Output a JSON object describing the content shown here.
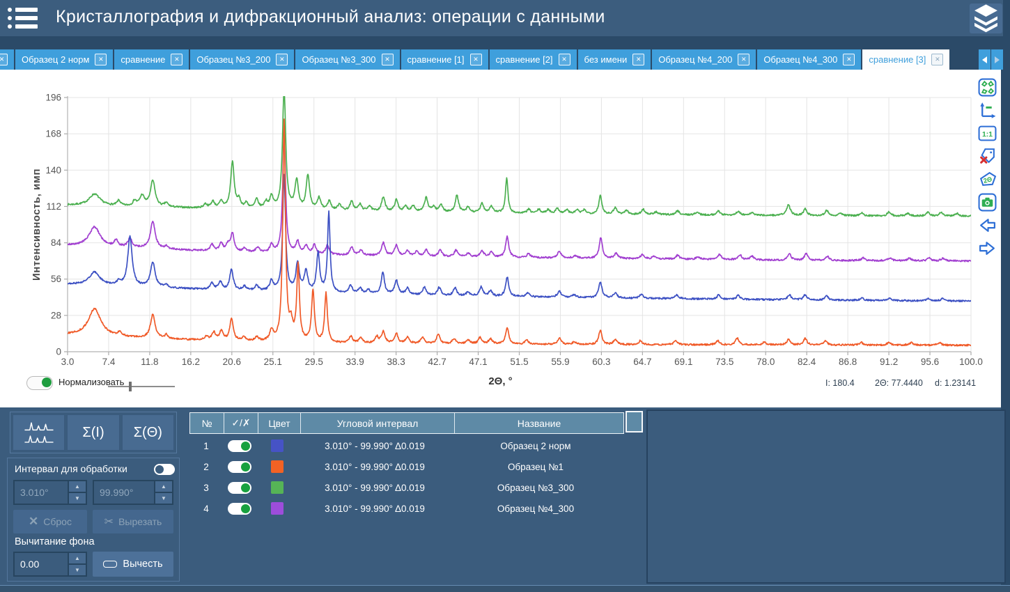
{
  "header": {
    "title": "Кристаллография и дифракционный анализ: операции с данными"
  },
  "tabs": {
    "items": [
      {
        "label": "",
        "clipped": true,
        "active": false
      },
      {
        "label": "Образец 2 норм",
        "active": false
      },
      {
        "label": "сравнение",
        "active": false
      },
      {
        "label": "Образец №3_200",
        "active": false
      },
      {
        "label": "Образец №3_300",
        "active": false
      },
      {
        "label": "сравнение [1]",
        "active": false
      },
      {
        "label": "сравнение [2]",
        "active": false
      },
      {
        "label": "без имени",
        "active": false
      },
      {
        "label": "Образец №4_200",
        "active": false
      },
      {
        "label": "Образец №4_300",
        "active": false
      },
      {
        "label": "сравнение [3]",
        "active": true
      }
    ],
    "close_glyph": "✕"
  },
  "toolbar": {
    "icons": [
      "labels-grid",
      "axes-autoscale",
      "one-to-one",
      "delete-labels",
      "two-theta-labels",
      "camera",
      "undo-arrow",
      "redo-arrow"
    ]
  },
  "chart": {
    "normalize_label": "Нормализовать",
    "status": {
      "intensity": "I: 180.4",
      "two_theta": "2Θ: 77.4440",
      "d_spacing": "d: 1.23141"
    }
  },
  "chart_data": {
    "type": "line",
    "xlabel": "2Θ, °",
    "ylabel": "Интенсивность, имп",
    "xlim": [
      3,
      100
    ],
    "ylim": [
      0,
      196
    ],
    "x_tick_labels": [
      "3.0",
      "7.4",
      "11.8",
      "16.2",
      "20.6",
      "25.1",
      "29.5",
      "33.9",
      "38.3",
      "42.7",
      "47.1",
      "51.5",
      "55.9",
      "60.3",
      "64.7",
      "69.1",
      "73.5",
      "78.0",
      "82.4",
      "86.8",
      "91.2",
      "95.6",
      "100.0"
    ],
    "y_ticks": [
      0,
      28,
      56,
      84,
      112,
      140,
      168,
      196
    ],
    "grid": true,
    "legend": "in-table-below",
    "series": [
      {
        "name": "Образец №3_300",
        "color": "#4cb050",
        "baseline": [
          [
            3,
            113
          ],
          [
            12,
            111.5
          ],
          [
            25,
            109.5
          ],
          [
            40,
            107.5
          ],
          [
            60,
            106
          ],
          [
            80,
            105
          ],
          [
            100,
            104.5
          ]
        ],
        "peaks": [
          [
            5.9,
            9,
            0.7
          ],
          [
            8.5,
            4
          ],
          [
            10.2,
            4
          ],
          [
            11.0,
            8,
            0.3
          ],
          [
            12.15,
            20,
            0.3
          ],
          [
            13.6,
            3
          ],
          [
            17.8,
            3
          ],
          [
            18.6,
            5
          ],
          [
            19.5,
            5
          ],
          [
            20.7,
            36,
            0.22
          ],
          [
            21.4,
            6
          ],
          [
            22.2,
            4
          ],
          [
            23.3,
            7
          ],
          [
            24.3,
            5
          ],
          [
            24.9,
            9
          ],
          [
            26.25,
            95,
            0.2
          ],
          [
            27.6,
            22
          ],
          [
            28.8,
            26
          ],
          [
            30.0,
            9
          ],
          [
            31.1,
            7
          ],
          [
            32.2,
            5
          ],
          [
            33.5,
            7
          ],
          [
            34.4,
            5
          ],
          [
            35.4,
            4
          ],
          [
            36.9,
            11
          ],
          [
            38.3,
            9
          ],
          [
            39.3,
            4
          ],
          [
            40.1,
            5
          ],
          [
            41.5,
            11
          ],
          [
            42.3,
            4
          ],
          [
            43.1,
            6
          ],
          [
            44.8,
            13
          ],
          [
            46.0,
            4
          ],
          [
            47.5,
            7
          ],
          [
            48.5,
            5
          ],
          [
            50.15,
            27,
            0.16
          ],
          [
            52.5,
            3
          ],
          [
            53.6,
            3
          ],
          [
            54.6,
            3
          ],
          [
            55.6,
            4
          ],
          [
            56.6,
            3
          ],
          [
            57.7,
            3
          ],
          [
            58.5,
            3
          ],
          [
            60.2,
            14,
            0.2
          ],
          [
            61.8,
            5
          ],
          [
            63.0,
            3
          ],
          [
            64.8,
            4
          ],
          [
            66.2,
            2
          ],
          [
            68.5,
            3
          ],
          [
            70.6,
            2
          ],
          [
            72.9,
            3
          ],
          [
            75.0,
            3
          ],
          [
            76.5,
            2
          ],
          [
            80.4,
            8,
            0.25
          ],
          [
            82.2,
            5
          ],
          [
            84.5,
            4
          ],
          [
            86.0,
            2
          ],
          [
            88.3,
            2
          ],
          [
            91.2,
            3
          ],
          [
            93.2,
            2
          ],
          [
            95.4,
            3
          ],
          [
            96.8,
            3
          ],
          [
            98.5,
            2
          ]
        ]
      },
      {
        "name": "Образец №4_300",
        "color": "#a13fd0",
        "baseline": [
          [
            3,
            82
          ],
          [
            10,
            80
          ],
          [
            20,
            77
          ],
          [
            32,
            74.5
          ],
          [
            45,
            73
          ],
          [
            60,
            72
          ],
          [
            80,
            70.5
          ],
          [
            100,
            70
          ]
        ],
        "peaks": [
          [
            5.9,
            15,
            0.7
          ],
          [
            8.2,
            5
          ],
          [
            9.7,
            7,
            0.25
          ],
          [
            12.15,
            21,
            0.3
          ],
          [
            13.6,
            2
          ],
          [
            18.5,
            5
          ],
          [
            19.5,
            6
          ],
          [
            20.2,
            5
          ],
          [
            20.7,
            14
          ],
          [
            22.0,
            3
          ],
          [
            23.4,
            4
          ],
          [
            24.9,
            6
          ],
          [
            26.25,
            92,
            0.18
          ],
          [
            27.7,
            9
          ],
          [
            28.6,
            6
          ],
          [
            29.5,
            7
          ],
          [
            30.9,
            7
          ],
          [
            33.5,
            6
          ],
          [
            34.5,
            4
          ],
          [
            36.9,
            10
          ],
          [
            38.3,
            8
          ],
          [
            39.5,
            4
          ],
          [
            40.5,
            4
          ],
          [
            41.5,
            5
          ],
          [
            43.0,
            5
          ],
          [
            44.7,
            5
          ],
          [
            46.0,
            3
          ],
          [
            47.5,
            5
          ],
          [
            48.5,
            4
          ],
          [
            50.2,
            16,
            0.2
          ],
          [
            52.5,
            3
          ],
          [
            55.8,
            5
          ],
          [
            57.5,
            2
          ],
          [
            60.25,
            16,
            0.2
          ],
          [
            61.9,
            4
          ],
          [
            64.7,
            3
          ],
          [
            66.0,
            2
          ],
          [
            68.5,
            3
          ],
          [
            70.7,
            2
          ],
          [
            73.0,
            4
          ],
          [
            75.2,
            4
          ],
          [
            76.5,
            3
          ],
          [
            80.5,
            5
          ],
          [
            82.3,
            5
          ],
          [
            84.6,
            3
          ],
          [
            88.4,
            2
          ],
          [
            91.3,
            2
          ],
          [
            93.4,
            2
          ],
          [
            95.5,
            2
          ],
          [
            97.0,
            2
          ]
        ]
      },
      {
        "name": "Образец 2 норм",
        "color": "#3c50c3",
        "baseline": [
          [
            3,
            52
          ],
          [
            10,
            50
          ],
          [
            20,
            47.5
          ],
          [
            32,
            45
          ],
          [
            45,
            43
          ],
          [
            60,
            41.5
          ],
          [
            80,
            40
          ],
          [
            100,
            39
          ]
        ],
        "peaks": [
          [
            5.9,
            10,
            0.7
          ],
          [
            8.5,
            3
          ],
          [
            9.7,
            38,
            0.28
          ],
          [
            12.15,
            19,
            0.3
          ],
          [
            13.6,
            2
          ],
          [
            18.5,
            5
          ],
          [
            19.4,
            6
          ],
          [
            20.6,
            16
          ],
          [
            22.0,
            3
          ],
          [
            23.3,
            4
          ],
          [
            24.9,
            8
          ],
          [
            26.25,
            90,
            0.18
          ],
          [
            27.7,
            22
          ],
          [
            28.6,
            16
          ],
          [
            29.9,
            30,
            0.2
          ],
          [
            31.05,
            62,
            0.16
          ],
          [
            33.4,
            6
          ],
          [
            34.4,
            4
          ],
          [
            35.3,
            3
          ],
          [
            36.85,
            17,
            0.2
          ],
          [
            38.3,
            11
          ],
          [
            39.5,
            5
          ],
          [
            41.3,
            6
          ],
          [
            42.9,
            6
          ],
          [
            44.6,
            6
          ],
          [
            46.0,
            3
          ],
          [
            47.4,
            7
          ],
          [
            48.4,
            4
          ],
          [
            50.2,
            15,
            0.2
          ],
          [
            52.4,
            3
          ],
          [
            55.8,
            5
          ],
          [
            57.4,
            2
          ],
          [
            60.2,
            12
          ],
          [
            61.8,
            4
          ],
          [
            64.6,
            3
          ],
          [
            68.4,
            3
          ],
          [
            72.9,
            3
          ],
          [
            75.0,
            3
          ],
          [
            80.5,
            4
          ],
          [
            82.2,
            4
          ],
          [
            84.5,
            3
          ],
          [
            88.3,
            2
          ],
          [
            91.3,
            2
          ],
          [
            95.4,
            2
          ],
          [
            97.0,
            2
          ]
        ]
      },
      {
        "name": "Образец №1",
        "color": "#f05a28",
        "baseline": [
          [
            3,
            13
          ],
          [
            8,
            11.5
          ],
          [
            14,
            9.5
          ],
          [
            22,
            8
          ],
          [
            32,
            6.5
          ],
          [
            45,
            6
          ],
          [
            60,
            5.5
          ],
          [
            100,
            5
          ]
        ],
        "peaks": [
          [
            5.9,
            21,
            0.8
          ],
          [
            8.6,
            3
          ],
          [
            12.15,
            18,
            0.3
          ],
          [
            13.6,
            3
          ],
          [
            17.9,
            3
          ],
          [
            18.7,
            6
          ],
          [
            19.5,
            7
          ],
          [
            20.6,
            17,
            0.22
          ],
          [
            21.9,
            3
          ],
          [
            23.3,
            3
          ],
          [
            24.9,
            8
          ],
          [
            26.25,
            170,
            0.17
          ],
          [
            27.0,
            12
          ],
          [
            27.75,
            58,
            0.17
          ],
          [
            29.35,
            40,
            0.18
          ],
          [
            30.75,
            38,
            0.17
          ],
          [
            33.4,
            5
          ],
          [
            34.5,
            4
          ],
          [
            36.2,
            5
          ],
          [
            36.9,
            9
          ],
          [
            38.3,
            8,
            0.2
          ],
          [
            39.5,
            5
          ],
          [
            41.1,
            5
          ],
          [
            42.8,
            7
          ],
          [
            44.5,
            4
          ],
          [
            46.0,
            3
          ],
          [
            47.3,
            5
          ],
          [
            48.4,
            4
          ],
          [
            50.2,
            13,
            0.2
          ],
          [
            52.3,
            3
          ],
          [
            55.8,
            5
          ],
          [
            57.4,
            2
          ],
          [
            60.2,
            11,
            0.2
          ],
          [
            61.8,
            4
          ],
          [
            64.5,
            3
          ],
          [
            68.3,
            3
          ],
          [
            72.8,
            3
          ],
          [
            74.9,
            5
          ],
          [
            77.8,
            2
          ],
          [
            80.4,
            4
          ],
          [
            82.2,
            5
          ],
          [
            84.4,
            3
          ],
          [
            88.2,
            2
          ],
          [
            91.2,
            2
          ],
          [
            93.6,
            2
          ],
          [
            96.6,
            2
          ]
        ]
      }
    ]
  },
  "left_panel": {
    "sigma_i": "Σ(I)",
    "sigma_theta": "Σ(Θ)",
    "interval": {
      "label": "Интервал для обработки",
      "from": "3.010°",
      "to": "99.990°",
      "reset": "Сброс",
      "cut": "Вырезать"
    },
    "background": {
      "label": "Вычитание фона",
      "value": "0.00",
      "subtract": "Вычесть"
    }
  },
  "table": {
    "headers": [
      "№",
      "✓/✗",
      "Цвет",
      "Угловой интервал",
      "Название"
    ],
    "rows": [
      {
        "num": "1",
        "enabled": true,
        "color": "#4653c6",
        "interval": "3.010° - 99.990° Δ0.019",
        "name": "Образец 2 норм"
      },
      {
        "num": "2",
        "enabled": true,
        "color": "#f26224",
        "interval": "3.010° - 99.990° Δ0.019",
        "name": "Образец №1"
      },
      {
        "num": "3",
        "enabled": true,
        "color": "#56b456",
        "interval": "3.010° - 99.990° Δ0.019",
        "name": "Образец №3_300"
      },
      {
        "num": "4",
        "enabled": true,
        "color": "#9d4ddb",
        "interval": "3.010° - 99.990° Δ0.019",
        "name": "Образец №4_300"
      }
    ]
  }
}
